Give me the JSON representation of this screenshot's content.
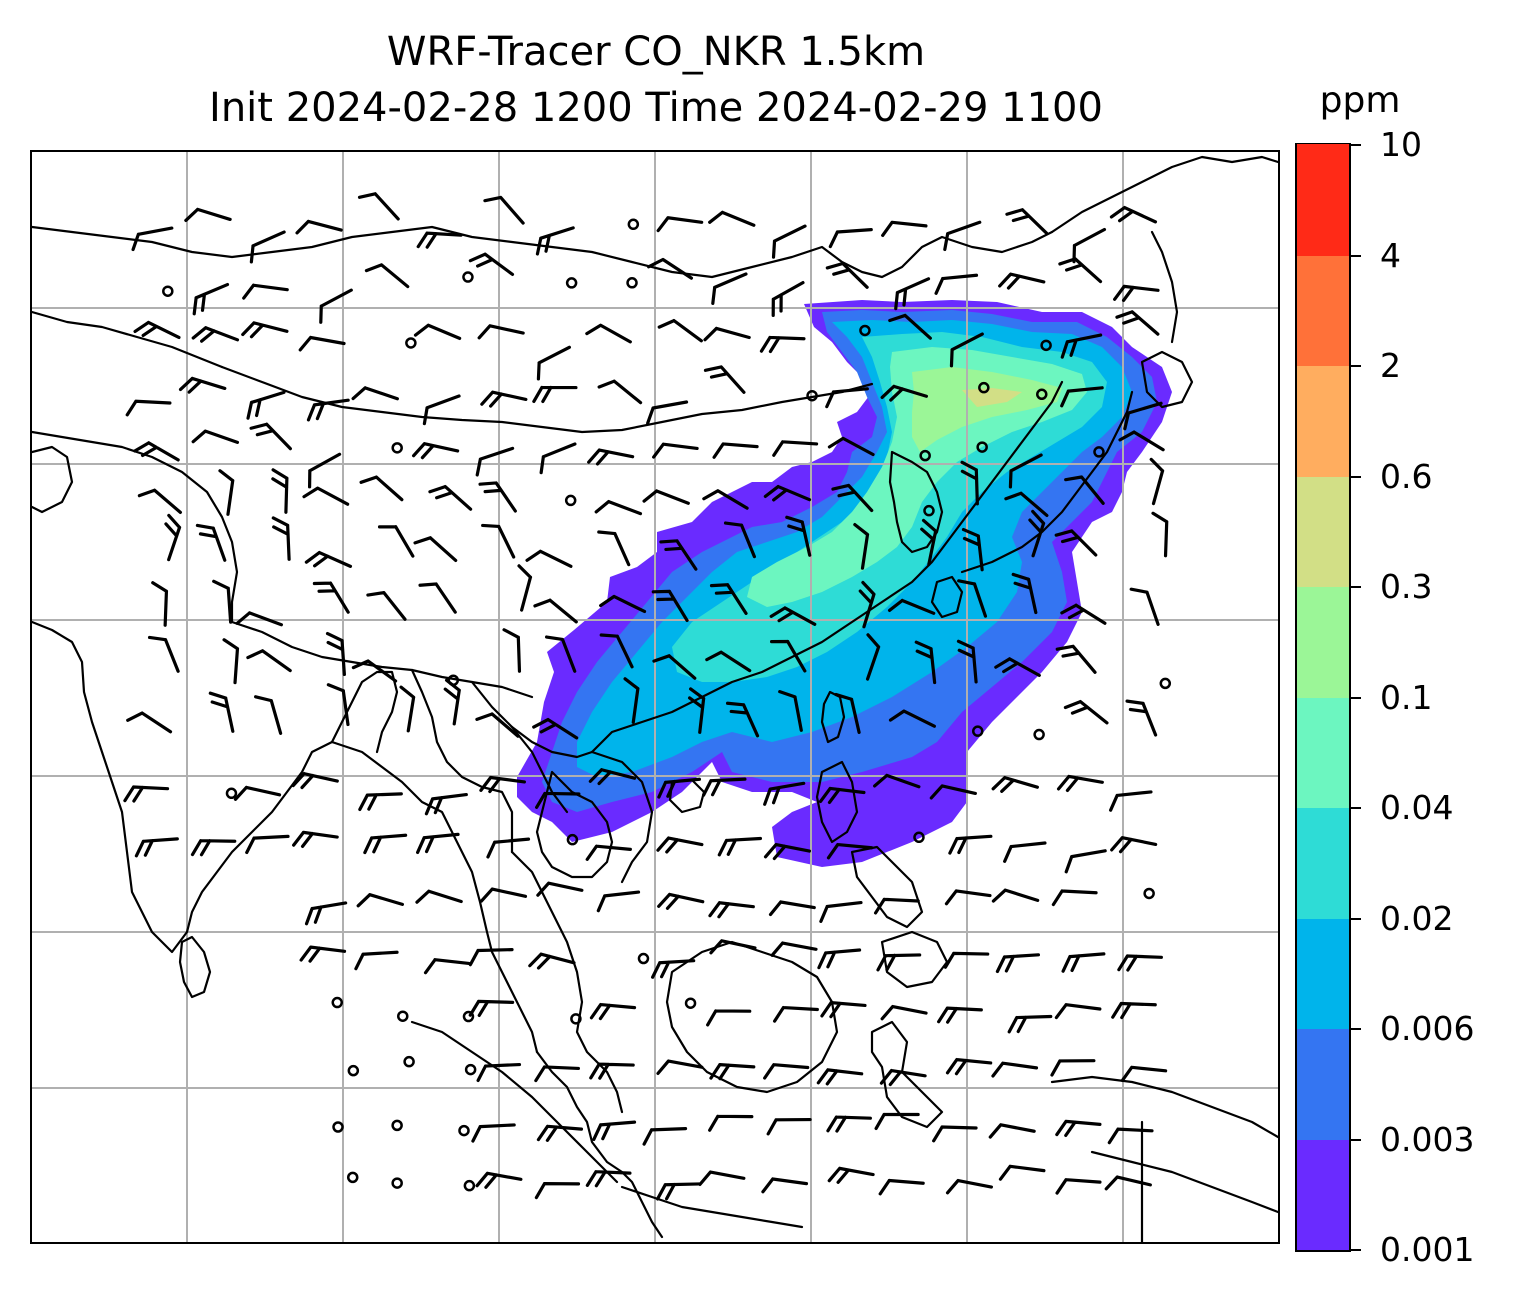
{
  "title": {
    "line1": "WRF-Tracer CO_NKR 1.5km",
    "line2": "Init 2024-02-28 1200 Time 2024-02-29 1100"
  },
  "colorbar": {
    "unit": "ppm",
    "levels": [
      "0.001",
      "0.003",
      "0.006",
      "0.02",
      "0.04",
      "0.1",
      "0.3",
      "0.6",
      "2",
      "4",
      "10"
    ],
    "colors": [
      "#6a2bff",
      "#3475f2",
      "#00b4eb",
      "#2edcd6",
      "#6cf6c0",
      "#9bf697",
      "#d2df86",
      "#ffad5f",
      "#ff7139",
      "#ff2a17"
    ]
  },
  "map": {
    "layers": [
      "tracer-concentration",
      "wind-barbs",
      "coastlines",
      "lat-lon-grid"
    ],
    "background": "#ffffff",
    "coastline_color": "#000000",
    "grid_color": "#b0b0b0"
  }
}
